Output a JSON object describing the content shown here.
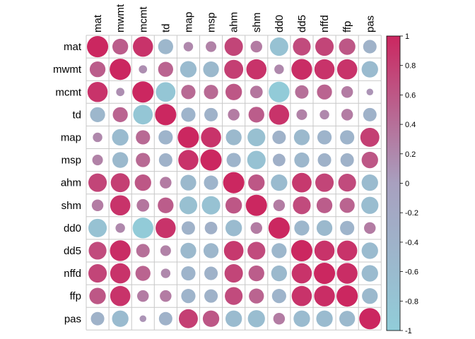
{
  "chart_data": {
    "type": "heatmap",
    "title": "",
    "variables": [
      "mat",
      "mwmt",
      "mcmt",
      "td",
      "map",
      "msp",
      "ahm",
      "shm",
      "dd0",
      "dd5",
      "nffd",
      "ffp",
      "pas"
    ],
    "matrix": [
      [
        1.0,
        0.55,
        0.9,
        -0.5,
        0.2,
        0.25,
        0.75,
        0.3,
        -0.75,
        0.7,
        0.75,
        0.6,
        -0.4
      ],
      [
        0.55,
        1.0,
        0.15,
        0.5,
        -0.6,
        -0.55,
        0.8,
        0.9,
        0.2,
        0.95,
        0.9,
        0.9,
        -0.6
      ],
      [
        0.9,
        0.15,
        1.0,
        -0.85,
        0.45,
        0.45,
        0.6,
        0.35,
        -0.95,
        0.4,
        0.5,
        0.3,
        0.1
      ],
      [
        -0.5,
        0.5,
        -0.85,
        1.0,
        -0.45,
        -0.4,
        0.3,
        0.55,
        0.9,
        0.25,
        0.2,
        0.3,
        -0.4
      ],
      [
        0.2,
        -0.6,
        0.45,
        -0.45,
        1.0,
        0.9,
        -0.55,
        -0.7,
        -0.4,
        -0.55,
        -0.45,
        -0.45,
        0.8
      ],
      [
        0.25,
        -0.55,
        0.45,
        -0.4,
        0.9,
        1.0,
        -0.45,
        -0.75,
        -0.35,
        -0.5,
        -0.4,
        -0.4,
        0.6
      ],
      [
        0.75,
        0.8,
        0.6,
        0.3,
        -0.55,
        -0.45,
        1.0,
        0.6,
        -0.6,
        0.85,
        0.75,
        0.7,
        -0.6
      ],
      [
        0.3,
        0.9,
        0.35,
        0.55,
        -0.7,
        -0.75,
        0.6,
        1.0,
        0.3,
        0.7,
        0.55,
        0.5,
        -0.65
      ],
      [
        -0.75,
        0.2,
        -0.95,
        0.9,
        -0.4,
        -0.35,
        -0.6,
        0.3,
        1.0,
        -0.5,
        -0.55,
        -0.45,
        0.3
      ],
      [
        0.7,
        0.95,
        0.4,
        0.25,
        -0.55,
        -0.5,
        0.85,
        0.7,
        -0.5,
        1.0,
        0.9,
        0.9,
        -0.6
      ],
      [
        0.75,
        0.9,
        0.5,
        0.2,
        -0.45,
        -0.4,
        0.75,
        0.55,
        -0.55,
        0.9,
        1.0,
        0.95,
        -0.6
      ],
      [
        0.6,
        0.9,
        0.3,
        0.3,
        -0.45,
        -0.4,
        0.7,
        0.5,
        -0.45,
        0.9,
        0.95,
        1.0,
        -0.55
      ],
      [
        -0.4,
        -0.6,
        0.1,
        -0.4,
        0.8,
        0.6,
        -0.6,
        -0.65,
        0.3,
        -0.6,
        -0.6,
        -0.55,
        1.0
      ]
    ],
    "color_scale": {
      "min": -1,
      "max": 1,
      "low_color": "#91cdd9",
      "mid_color": "#a8a0bf",
      "high_color": "#cb2760",
      "ticks": [
        "1",
        "0.8",
        "0.6",
        "0.4",
        "0.2",
        "0",
        "-0.2",
        "-0.4",
        "-0.6",
        "-0.8",
        "-1"
      ]
    },
    "grid": true,
    "legend_position": "right"
  }
}
